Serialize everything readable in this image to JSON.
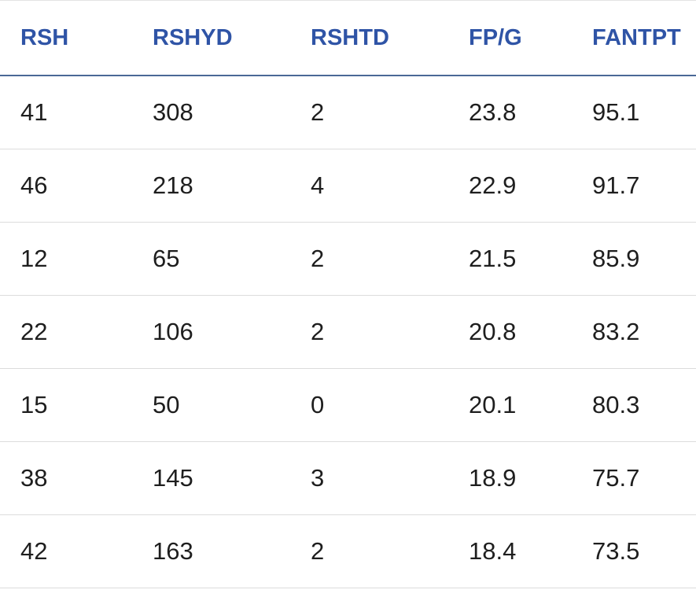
{
  "table": {
    "headers": [
      "RSH",
      "RSHYD",
      "RSHTD",
      "FP/G",
      "FANTPT"
    ],
    "rows": [
      [
        "41",
        "308",
        "2",
        "23.8",
        "95.1"
      ],
      [
        "46",
        "218",
        "4",
        "22.9",
        "91.7"
      ],
      [
        "12",
        "65",
        "2",
        "21.5",
        "85.9"
      ],
      [
        "22",
        "106",
        "2",
        "20.8",
        "83.2"
      ],
      [
        "15",
        "50",
        "0",
        "20.1",
        "80.3"
      ],
      [
        "38",
        "145",
        "3",
        "18.9",
        "75.7"
      ],
      [
        "42",
        "163",
        "2",
        "18.4",
        "73.5"
      ]
    ]
  },
  "colors": {
    "header_text": "#2f54a6",
    "header_rule": "#4a6896",
    "row_rule": "#dcdcdc",
    "cell_text": "#1e1e1e"
  }
}
